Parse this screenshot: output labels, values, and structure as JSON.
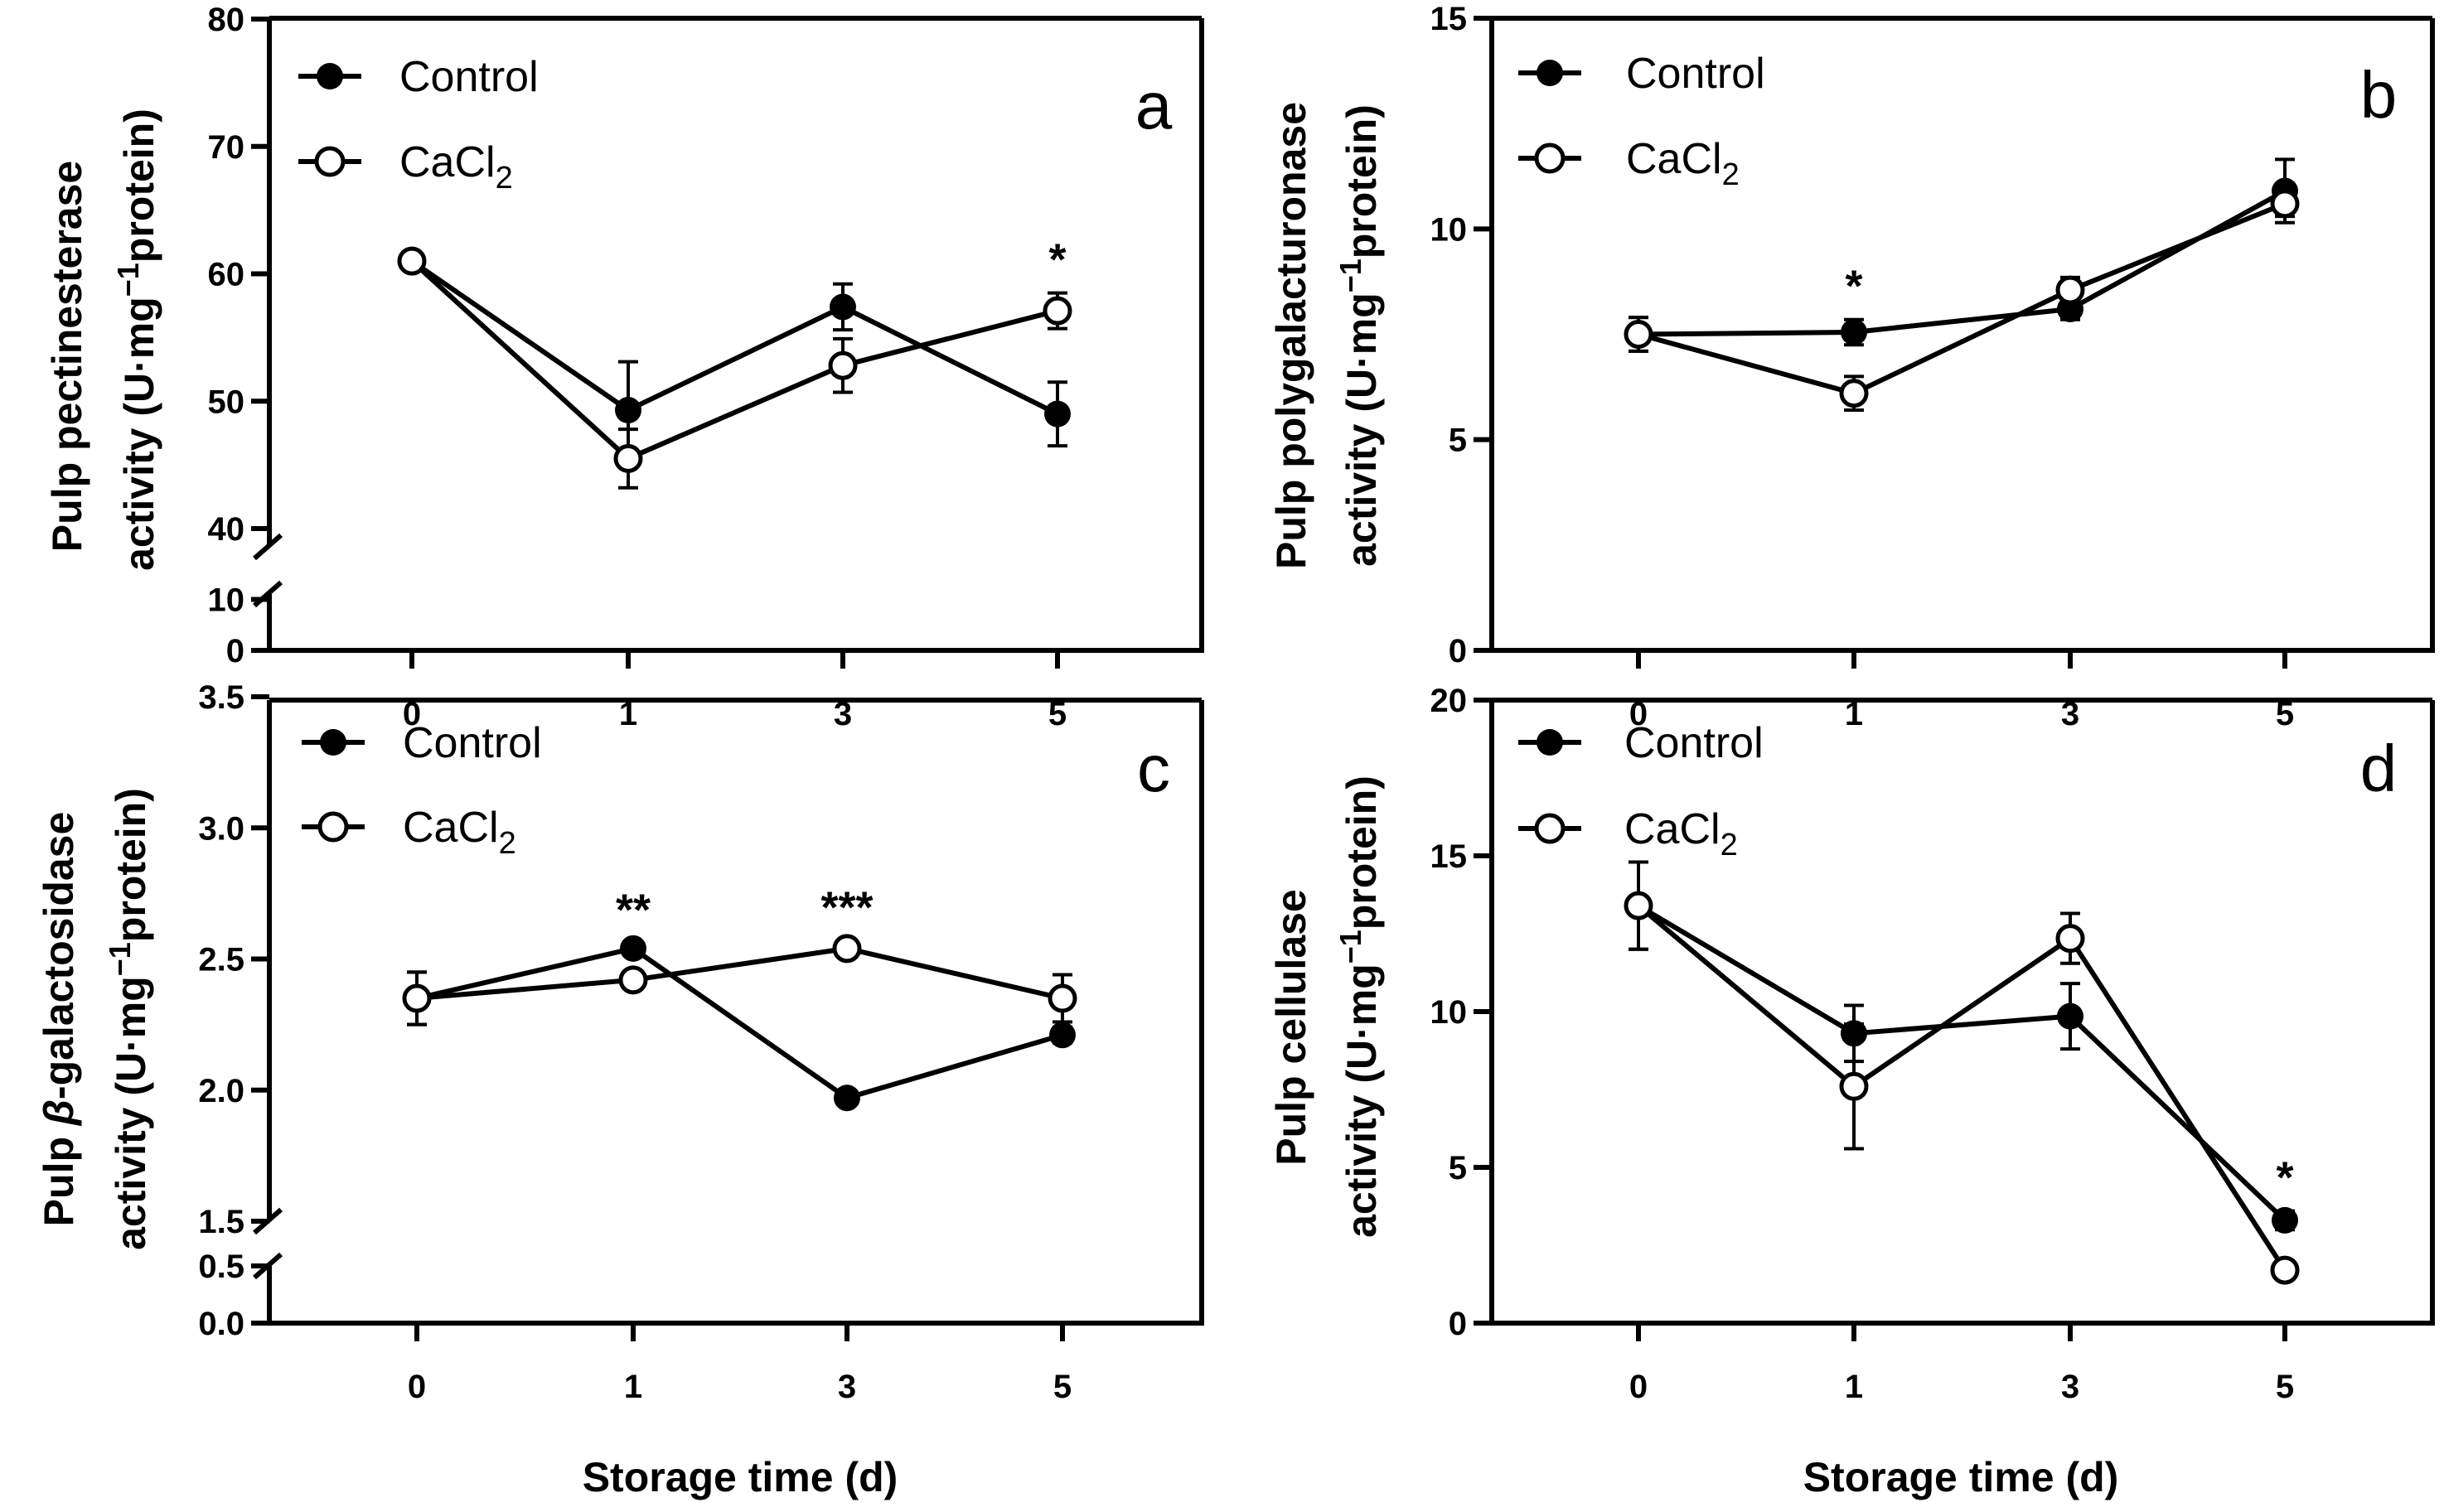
{
  "chart_data": [
    {
      "type": "line",
      "panel": "a",
      "ylabel_line1": "Pulp pectinesterase",
      "ylabel_line2_pre": "activity (U·mg",
      "ylabel_line2_sup": "−1",
      "ylabel_line2_post": "protein)",
      "categories": [
        "0",
        "1",
        "3",
        "5"
      ],
      "yticks": [
        {
          "value": 0,
          "label": "0"
        },
        {
          "value": 10,
          "label": "10"
        },
        {
          "value": 40,
          "label": "40"
        },
        {
          "value": 50,
          "label": "50"
        },
        {
          "value": 60,
          "label": "60"
        },
        {
          "value": 70,
          "label": "70"
        },
        {
          "value": 80,
          "label": "80"
        }
      ],
      "axis_break": [
        10,
        40
      ],
      "series": [
        {
          "name": "Control",
          "marker": "filled",
          "values": [
            61.0,
            49.3,
            57.4,
            49.0
          ],
          "errors": [
            0.4,
            3.8,
            1.8,
            2.5
          ]
        },
        {
          "name": "CaCl2",
          "marker": "open",
          "values": [
            61.0,
            45.5,
            52.8,
            57.1
          ],
          "errors": [
            0.4,
            2.3,
            2.1,
            1.4
          ]
        }
      ],
      "legend": {
        "control": "Control",
        "cacl_base": "CaCl",
        "cacl_sub": "2"
      },
      "significance": [
        {
          "category": "5",
          "label": "*"
        }
      ]
    },
    {
      "type": "line",
      "panel": "b",
      "ylabel_line1": "Pulp polygalacturonase",
      "ylabel_line2_pre": "activity (U·mg",
      "ylabel_line2_sup": "−1",
      "ylabel_line2_post": "protein)",
      "categories": [
        "0",
        "1",
        "3",
        "5"
      ],
      "yticks": [
        {
          "value": 0,
          "label": "0"
        },
        {
          "value": 5,
          "label": "5"
        },
        {
          "value": 10,
          "label": "10"
        },
        {
          "value": 15,
          "label": "15"
        }
      ],
      "series": [
        {
          "name": "Control",
          "marker": "filled",
          "values": [
            7.5,
            7.55,
            8.1,
            10.9
          ],
          "errors": [
            0.4,
            0.3,
            0.25,
            0.75
          ]
        },
        {
          "name": "CaCl2",
          "marker": "open",
          "values": [
            7.5,
            6.1,
            8.55,
            10.6
          ],
          "errors": [
            0.4,
            0.4,
            0.3,
            0.3
          ]
        }
      ],
      "legend": {
        "control": "Control",
        "cacl_base": "CaCl",
        "cacl_sub": "2"
      },
      "significance": [
        {
          "category": "1",
          "label": "*"
        }
      ]
    },
    {
      "type": "line",
      "panel": "c",
      "ylabel_line1_pre": "Pulp ",
      "ylabel_line1_beta": "β",
      "ylabel_line1_post": "-galactosidase",
      "ylabel_line2_pre": "activity (U·mg",
      "ylabel_line2_sup": "−1",
      "ylabel_line2_post": "protein)",
      "categories": [
        "0",
        "1",
        "3",
        "5"
      ],
      "yticks": [
        {
          "value": 0.0,
          "label": "0.0"
        },
        {
          "value": 0.5,
          "label": "0.5"
        },
        {
          "value": 1.5,
          "label": "1.5"
        },
        {
          "value": 2.0,
          "label": "2.0"
        },
        {
          "value": 2.5,
          "label": "2.5"
        },
        {
          "value": 3.0,
          "label": "3.0"
        },
        {
          "value": 3.5,
          "label": "3.5"
        }
      ],
      "axis_break": [
        0.5,
        1.5
      ],
      "series": [
        {
          "name": "Control",
          "marker": "filled",
          "values": [
            2.35,
            2.54,
            1.97,
            2.21
          ],
          "errors": [
            0.1,
            0.02,
            0.02,
            0.03
          ]
        },
        {
          "name": "CaCl2",
          "marker": "open",
          "values": [
            2.35,
            2.42,
            2.54,
            2.35
          ],
          "errors": [
            0.1,
            0.03,
            0.03,
            0.09
          ]
        }
      ],
      "legend": {
        "control": "Control",
        "cacl_base": "CaCl",
        "cacl_sub": "2"
      },
      "significance": [
        {
          "category": "1",
          "label": "**"
        },
        {
          "category": "3",
          "label": "***"
        }
      ]
    },
    {
      "type": "line",
      "panel": "d",
      "ylabel_line1": "Pulp cellulase",
      "ylabel_line2_pre": "activity (U·mg",
      "ylabel_line2_sup": "−1",
      "ylabel_line2_post": "protein)",
      "categories": [
        "0",
        "1",
        "3",
        "5"
      ],
      "yticks": [
        {
          "value": 0,
          "label": "0"
        },
        {
          "value": 5,
          "label": "5"
        },
        {
          "value": 10,
          "label": "10"
        },
        {
          "value": 15,
          "label": "15"
        },
        {
          "value": 20,
          "label": "20"
        }
      ],
      "series": [
        {
          "name": "Control",
          "marker": "filled",
          "values": [
            13.4,
            9.3,
            9.85,
            3.3
          ],
          "errors": [
            1.4,
            0.9,
            1.05,
            0.3
          ]
        },
        {
          "name": "CaCl2",
          "marker": "open",
          "values": [
            13.4,
            7.6,
            12.35,
            1.7
          ],
          "errors": [
            1.4,
            2.0,
            0.8,
            0.3
          ]
        }
      ],
      "legend": {
        "control": "Control",
        "cacl_base": "CaCl",
        "cacl_sub": "2"
      },
      "significance": [
        {
          "category": "5",
          "label": "*"
        }
      ]
    }
  ],
  "xlabel": "Storage time (d)"
}
